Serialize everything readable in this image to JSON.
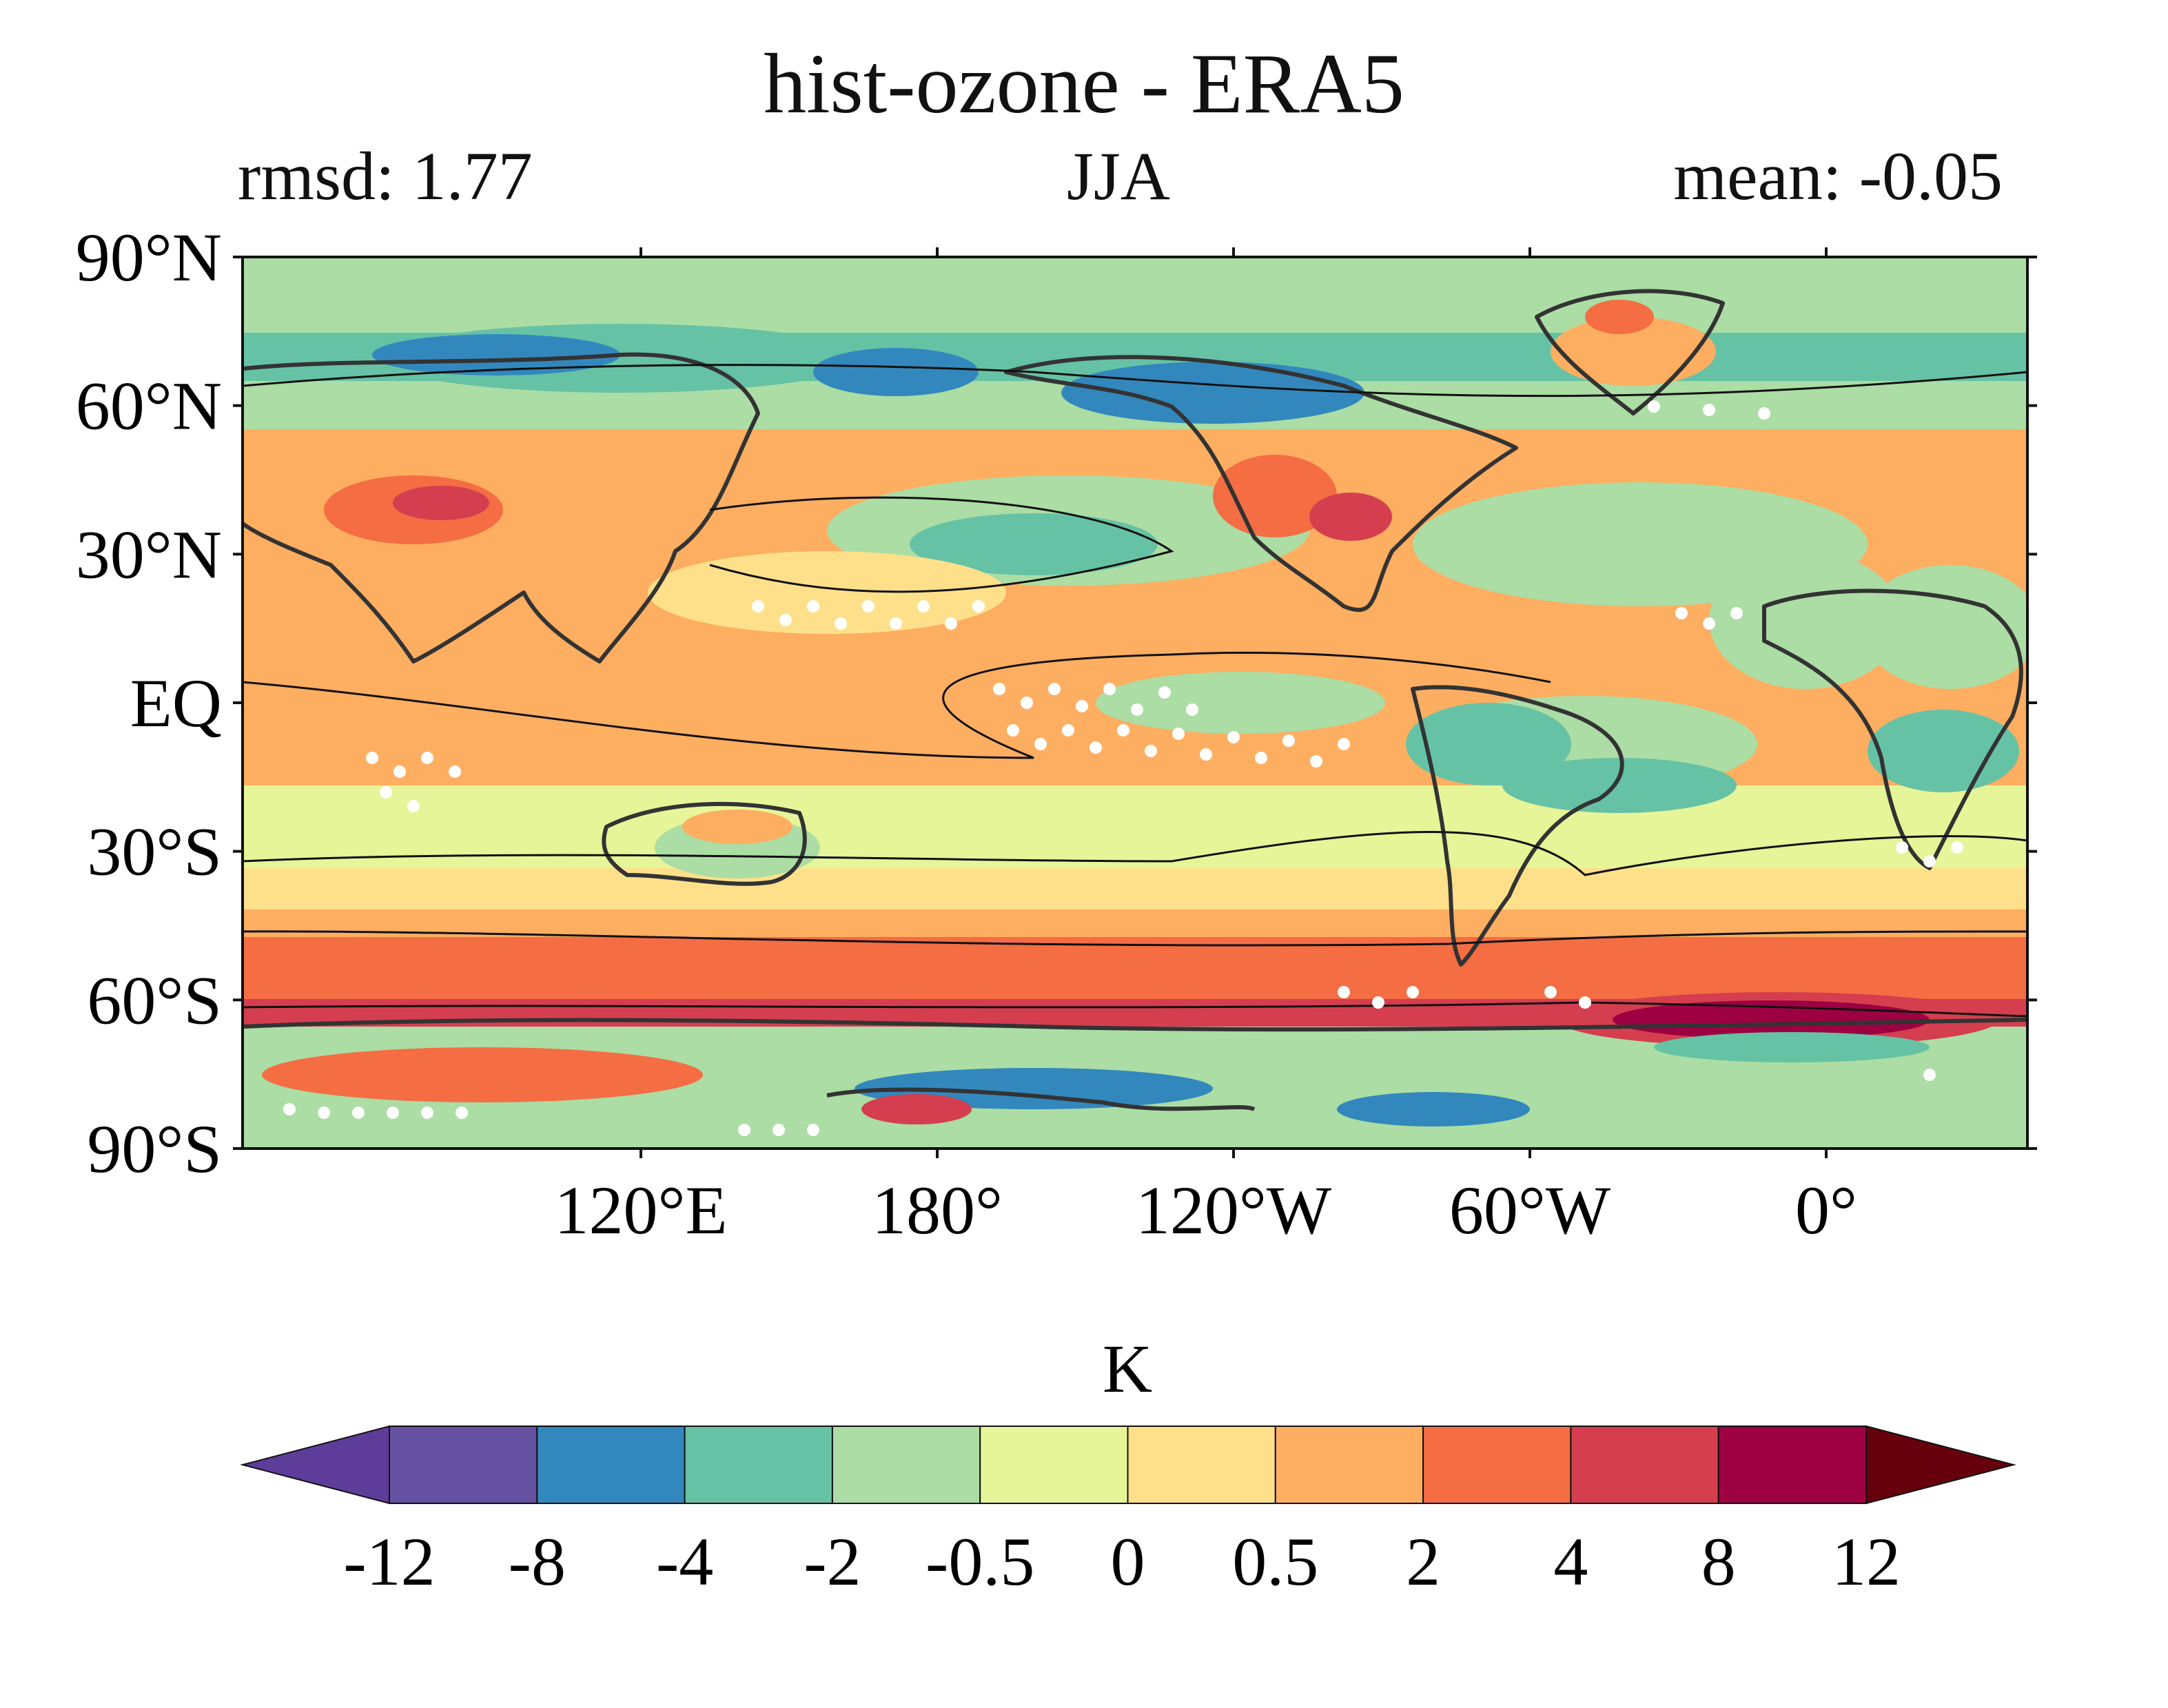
{
  "title": "hist-ozone - ERA5",
  "subtitle": {
    "left": "rmsd: 1.77",
    "center": "JJA",
    "right": "mean: -0.05"
  },
  "map": {
    "lat_ticks": [
      "90°N",
      "60°N",
      "30°N",
      "EQ",
      "30°S",
      "60°S",
      "90°S"
    ],
    "lon_ticks": [
      "120°E",
      "180°",
      "120°W",
      "60°W",
      "0°"
    ]
  },
  "colorbar": {
    "label": "K",
    "ticks": [
      "-12",
      "-8",
      "-4",
      "-2",
      "-0.5",
      "0",
      "0.5",
      "2",
      "4",
      "8",
      "12"
    ],
    "colors": [
      "#5e3c99",
      "#6552a3",
      "#3288bd",
      "#66c2a5",
      "#abdda4",
      "#e6f598",
      "#fee08b",
      "#fdae61",
      "#f46d43",
      "#d53e4f",
      "#9e0142",
      "#67000d"
    ]
  },
  "colors": {
    "ocean_base": "#fdae61",
    "land_outline": "#333333",
    "line": "#111111"
  }
}
